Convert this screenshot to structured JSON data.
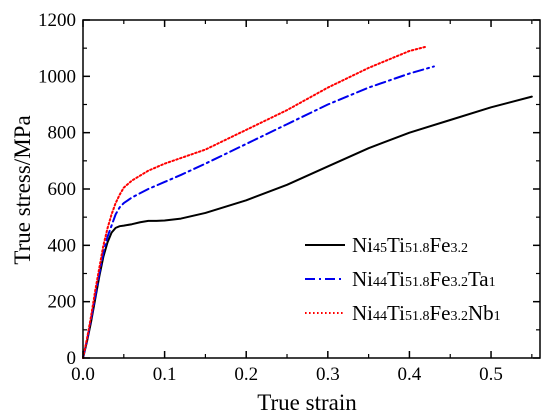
{
  "chart_data": {
    "type": "line",
    "xlabel": "True strain",
    "ylabel": "True stress/MPa",
    "xlim": [
      0,
      0.56
    ],
    "ylim": [
      0,
      1200
    ],
    "xticks": [
      0.0,
      0.1,
      0.2,
      0.3,
      0.4,
      0.5
    ],
    "xtick_labels": [
      "0.0",
      "0.1",
      "0.2",
      "0.3",
      "0.4",
      "0.5"
    ],
    "yticks": [
      0,
      200,
      400,
      600,
      800,
      1000,
      1200
    ],
    "ytick_labels": [
      "0",
      "200",
      "400",
      "600",
      "800",
      "1000",
      "1200"
    ],
    "grid": false,
    "legend_position": "bottom-right",
    "series": [
      {
        "name": "Ni45Ti51.8Fe3.2",
        "legend_parts": [
          [
            "Ni",
            false
          ],
          [
            "45",
            true
          ],
          [
            "Ti",
            false
          ],
          [
            "51.8",
            true
          ],
          [
            "Fe",
            false
          ],
          [
            "3.2",
            true
          ]
        ],
        "color": "#000000",
        "dash": "solid",
        "x": [
          0.0,
          0.005,
          0.01,
          0.015,
          0.02,
          0.025,
          0.03,
          0.035,
          0.04,
          0.045,
          0.05,
          0.06,
          0.07,
          0.08,
          0.09,
          0.1,
          0.12,
          0.15,
          0.2,
          0.25,
          0.3,
          0.35,
          0.4,
          0.45,
          0.5,
          0.55
        ],
        "y": [
          0,
          60,
          130,
          210,
          290,
          360,
          410,
          445,
          462,
          468,
          470,
          475,
          482,
          487,
          487,
          488,
          495,
          515,
          560,
          615,
          680,
          745,
          800,
          845,
          890,
          928
        ]
      },
      {
        "name": "Ni44Ti51.8Fe3.2Ta1",
        "legend_parts": [
          [
            "Ni",
            false
          ],
          [
            "44",
            true
          ],
          [
            "Ti",
            false
          ],
          [
            "51.8",
            true
          ],
          [
            "Fe",
            false
          ],
          [
            "3.2",
            true
          ],
          [
            "Ta",
            false
          ],
          [
            "1",
            true
          ]
        ],
        "color": "#0000ee",
        "dash": "dashdot",
        "x": [
          0.0,
          0.005,
          0.01,
          0.015,
          0.02,
          0.025,
          0.03,
          0.035,
          0.04,
          0.045,
          0.05,
          0.06,
          0.08,
          0.1,
          0.12,
          0.15,
          0.2,
          0.25,
          0.3,
          0.35,
          0.4,
          0.43
        ],
        "y": [
          0,
          65,
          140,
          220,
          300,
          375,
          430,
          470,
          510,
          535,
          550,
          570,
          600,
          625,
          650,
          690,
          760,
          830,
          900,
          960,
          1010,
          1035
        ]
      },
      {
        "name": "Ni44Ti51.8Fe3.2Nb1",
        "legend_parts": [
          [
            "Ni",
            false
          ],
          [
            "44",
            true
          ],
          [
            "Ti",
            false
          ],
          [
            "51.8",
            true
          ],
          [
            "Fe",
            false
          ],
          [
            "3.2",
            true
          ],
          [
            "Nb",
            false
          ],
          [
            "1",
            true
          ]
        ],
        "color": "#ff0000",
        "dash": "dotted",
        "x": [
          0.0,
          0.005,
          0.01,
          0.015,
          0.02,
          0.025,
          0.03,
          0.035,
          0.04,
          0.045,
          0.05,
          0.06,
          0.08,
          0.1,
          0.12,
          0.15,
          0.2,
          0.25,
          0.3,
          0.35,
          0.4,
          0.42
        ],
        "y": [
          0,
          70,
          150,
          240,
          320,
          400,
          460,
          510,
          550,
          580,
          605,
          630,
          665,
          690,
          710,
          740,
          810,
          880,
          960,
          1030,
          1090,
          1105
        ]
      }
    ]
  }
}
